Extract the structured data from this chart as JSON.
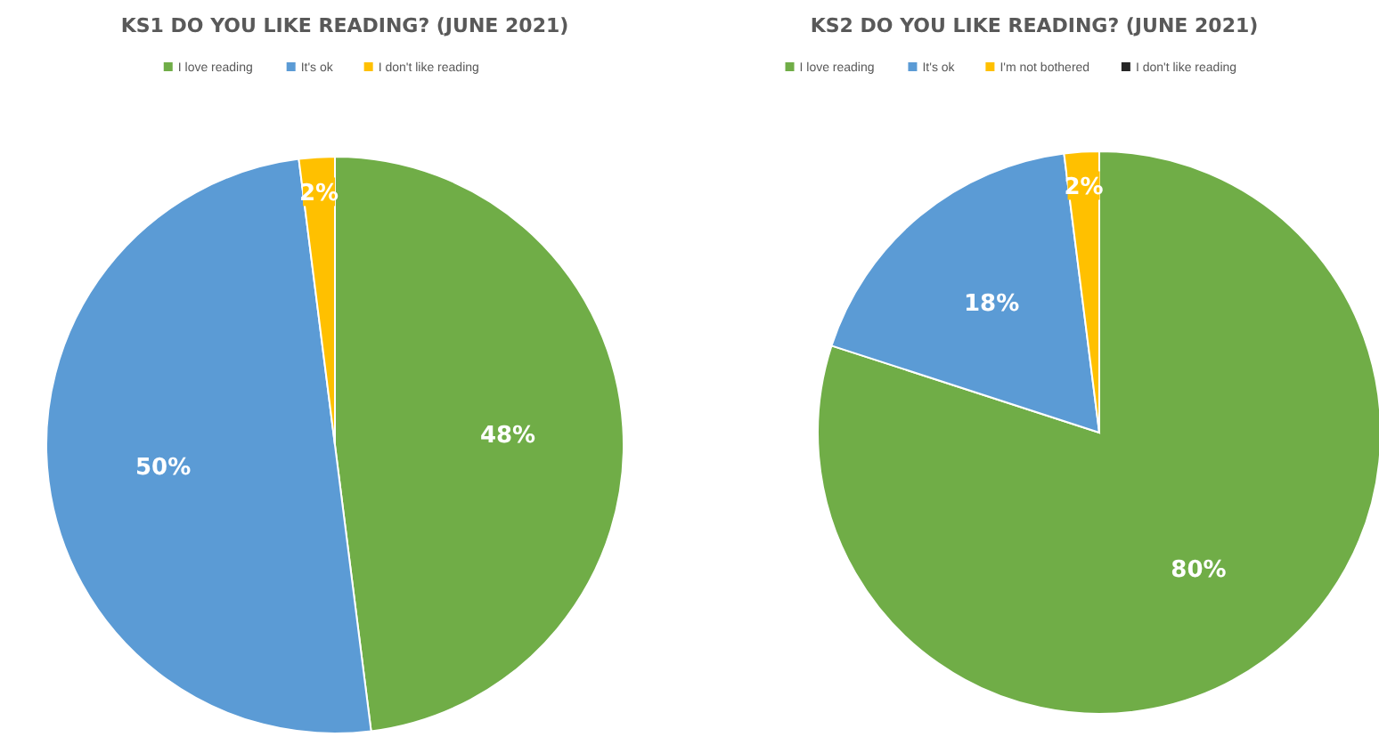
{
  "chart_data": [
    {
      "type": "pie",
      "title": "KS1 DO YOU LIKE READING? (JUNE 2021)",
      "categories": [
        "I love reading",
        "It's ok",
        "I don't like reading"
      ],
      "values": [
        48,
        50,
        2
      ],
      "value_labels": [
        "48%",
        "50%",
        "2%"
      ],
      "colors": [
        "#70ad47",
        "#5b9bd5",
        "#ffc000"
      ],
      "legend": "top"
    },
    {
      "type": "pie",
      "title": "KS2 DO YOU LIKE READING? (JUNE 2021)",
      "categories": [
        "I love reading",
        "It's ok",
        "I'm not bothered",
        "I don't like reading"
      ],
      "values": [
        80,
        18,
        2,
        0
      ],
      "value_labels": [
        "80%",
        "18%",
        "2%",
        null
      ],
      "colors": [
        "#70ad47",
        "#5b9bd5",
        "#ffc000",
        "#262626"
      ],
      "legend": "top"
    }
  ]
}
